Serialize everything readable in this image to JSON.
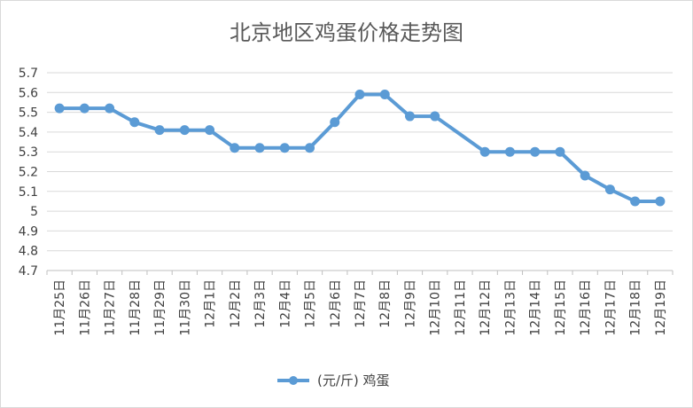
{
  "chart_data": {
    "type": "line",
    "title": "北京地区鸡蛋价格走势图",
    "xlabel": "",
    "ylabel": "",
    "ylim": [
      4.7,
      5.7
    ],
    "yticks": [
      "4.7",
      "4.8",
      "4.9",
      "5",
      "5.1",
      "5.2",
      "5.3",
      "5.4",
      "5.5",
      "5.6",
      "5.7"
    ],
    "grid": true,
    "legend_position": "bottom",
    "categories": [
      "11月25日",
      "11月26日",
      "11月27日",
      "11月28日",
      "11月29日",
      "11月30日",
      "12月1日",
      "12月2日",
      "12月3日",
      "12月4日",
      "12月5日",
      "12月6日",
      "12月7日",
      "12月8日",
      "12月9日",
      "12月10日",
      "12月11日",
      "12月12日",
      "12月13日",
      "12月14日",
      "12月15日",
      "12月16日",
      "12月17日",
      "12月18日",
      "12月19日"
    ],
    "series": [
      {
        "name": "(元/斤) 鸡蛋",
        "color": "#5b9bd5",
        "values": [
          5.52,
          5.52,
          5.52,
          5.45,
          5.41,
          5.41,
          5.41,
          5.32,
          5.32,
          5.32,
          5.32,
          5.45,
          5.59,
          5.59,
          5.48,
          5.48,
          null,
          5.3,
          5.3,
          5.3,
          5.3,
          5.18,
          5.11,
          5.05,
          5.05
        ]
      }
    ]
  },
  "colors": {
    "grid": "#d9d9d9",
    "axis": "#bfbfbf",
    "series": "#5b9bd5"
  }
}
